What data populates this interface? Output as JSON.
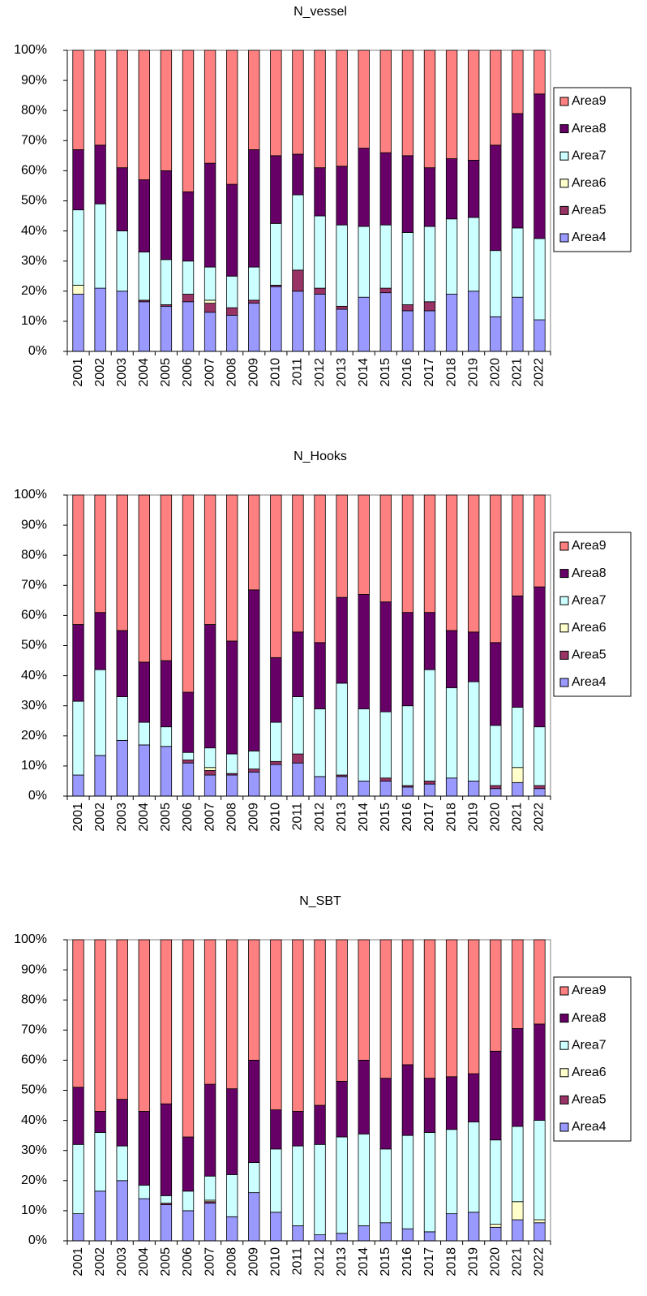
{
  "chart_data": [
    {
      "type": "stacked_bar_100",
      "title": "N_vessel",
      "categories": [
        "2001",
        "2002",
        "2003",
        "2004",
        "2005",
        "2006",
        "2007",
        "2008",
        "2009",
        "2010",
        "2011",
        "2012",
        "2013",
        "2014",
        "2015",
        "2016",
        "2017",
        "2018",
        "2019",
        "2020",
        "2021",
        "2022"
      ],
      "series": [
        {
          "name": "Area4",
          "color": "#9999ff",
          "values": [
            19,
            21,
            20,
            16.5,
            15,
            16.5,
            13,
            12,
            16,
            21.5,
            20,
            19,
            14,
            18,
            19.5,
            13.5,
            13.5,
            19,
            20,
            11.5,
            18,
            10.5
          ]
        },
        {
          "name": "Area5",
          "color": "#993366",
          "values": [
            0,
            0,
            0,
            0.5,
            0.5,
            2.5,
            3,
            2.5,
            1,
            0.5,
            7,
            2,
            1,
            0,
            1.5,
            2,
            3,
            0,
            0,
            0,
            0,
            0
          ]
        },
        {
          "name": "Area6",
          "color": "#ffffcc",
          "values": [
            3,
            0,
            0,
            0,
            0,
            0,
            1,
            0,
            0,
            0,
            0,
            0,
            0,
            0,
            0,
            0,
            0,
            0,
            0,
            0,
            0,
            0
          ]
        },
        {
          "name": "Area7",
          "color": "#ccffff",
          "values": [
            25,
            28,
            20,
            16,
            15,
            11,
            11,
            10.5,
            11,
            20.5,
            25,
            24,
            27,
            23.5,
            21,
            24,
            25,
            25,
            24.5,
            22,
            23,
            27
          ]
        },
        {
          "name": "Area8",
          "color": "#660066",
          "values": [
            20,
            19.5,
            21,
            24,
            29.5,
            23,
            34.5,
            30.5,
            39,
            22.5,
            13.5,
            16,
            19.5,
            26,
            24,
            25.5,
            19.5,
            20,
            19,
            35,
            38,
            48
          ]
        },
        {
          "name": "Area9",
          "color": "#ff8080",
          "values": [
            33,
            31.5,
            39,
            43,
            40,
            47,
            37.5,
            44.5,
            33,
            35,
            34.5,
            39,
            38.5,
            32.5,
            34,
            35,
            39,
            36,
            36.5,
            31.5,
            21,
            14.5
          ]
        }
      ],
      "ylim": [
        0,
        100
      ],
      "yticks": [
        {
          "value": 0,
          "label": "0%"
        },
        {
          "value": 10,
          "label": "10%"
        },
        {
          "value": 20,
          "label": "20%"
        },
        {
          "value": 30,
          "label": "30%"
        },
        {
          "value": 40,
          "label": "40%"
        },
        {
          "value": 50,
          "label": "50%"
        },
        {
          "value": 60,
          "label": "60%"
        },
        {
          "value": 70,
          "label": "70%"
        },
        {
          "value": 80,
          "label": "80%"
        },
        {
          "value": 90,
          "label": "90%"
        },
        {
          "value": 100,
          "label": "100%"
        }
      ],
      "grid": false,
      "legend": "right"
    },
    {
      "type": "stacked_bar_100",
      "title": "N_Hooks",
      "categories": [
        "2001",
        "2002",
        "2003",
        "2004",
        "2005",
        "2006",
        "2007",
        "2008",
        "2009",
        "2010",
        "2011",
        "2012",
        "2013",
        "2014",
        "2015",
        "2016",
        "2017",
        "2018",
        "2019",
        "2020",
        "2021",
        "2022"
      ],
      "series": [
        {
          "name": "Area4",
          "color": "#9999ff",
          "values": [
            7,
            13.5,
            18.5,
            17,
            16.5,
            11,
            7,
            7,
            8,
            10.5,
            11,
            6.5,
            6.5,
            5,
            5,
            3,
            4,
            6,
            5,
            2.5,
            4.5,
            2.5
          ]
        },
        {
          "name": "Area5",
          "color": "#993366",
          "values": [
            0,
            0,
            0,
            0,
            0,
            1,
            1.5,
            0.5,
            1,
            1,
            3,
            0,
            0.5,
            0,
            1,
            0.5,
            1,
            0,
            0,
            1,
            0,
            1
          ]
        },
        {
          "name": "Area6",
          "color": "#ffffcc",
          "values": [
            0,
            0,
            0,
            0,
            0,
            0,
            1,
            0,
            0,
            0,
            0,
            0,
            0,
            0,
            0,
            0,
            0,
            0,
            0,
            0,
            5,
            0
          ]
        },
        {
          "name": "Area7",
          "color": "#ccffff",
          "values": [
            24.5,
            28.5,
            14.5,
            7.5,
            6.5,
            2.5,
            6.5,
            6.5,
            6,
            13,
            19,
            22.5,
            30.5,
            24,
            22,
            26.5,
            37,
            30,
            33,
            20,
            20,
            19.5
          ]
        },
        {
          "name": "Area8",
          "color": "#660066",
          "values": [
            25.5,
            19,
            22,
            20,
            22,
            20,
            41,
            37.5,
            53.5,
            21.5,
            21.5,
            22,
            28.5,
            38,
            36.5,
            31,
            19,
            19,
            16.5,
            27.5,
            37,
            46.5
          ]
        },
        {
          "name": "Area9",
          "color": "#ff8080",
          "values": [
            43,
            39,
            45,
            55.5,
            55,
            65.5,
            43,
            48.5,
            31.5,
            54,
            45.5,
            49,
            34,
            33,
            35.5,
            39,
            39,
            45,
            45.5,
            49,
            33.5,
            30.5
          ]
        }
      ],
      "ylim": [
        0,
        100
      ],
      "yticks": [
        {
          "value": 0,
          "label": "0%"
        },
        {
          "value": 10,
          "label": "10%"
        },
        {
          "value": 20,
          "label": "20%"
        },
        {
          "value": 30,
          "label": "30%"
        },
        {
          "value": 40,
          "label": "40%"
        },
        {
          "value": 50,
          "label": "50%"
        },
        {
          "value": 60,
          "label": "60%"
        },
        {
          "value": 70,
          "label": "70%"
        },
        {
          "value": 80,
          "label": "80%"
        },
        {
          "value": 90,
          "label": "90%"
        },
        {
          "value": 100,
          "label": "100%"
        }
      ],
      "grid": false,
      "legend": "right"
    },
    {
      "type": "stacked_bar_100",
      "title": "N_SBT",
      "categories": [
        "2001",
        "2002",
        "2003",
        "2004",
        "2005",
        "2006",
        "2007",
        "2008",
        "2009",
        "2010",
        "2011",
        "2012",
        "2013",
        "2014",
        "2015",
        "2016",
        "2017",
        "2018",
        "2019",
        "2020",
        "2021",
        "2022"
      ],
      "series": [
        {
          "name": "Area4",
          "color": "#9999ff",
          "values": [
            9,
            16.5,
            20,
            14,
            12,
            10,
            12.5,
            8,
            16,
            9.5,
            5,
            2,
            2.5,
            5,
            6,
            4,
            3,
            9,
            9.5,
            4.5,
            7,
            6
          ]
        },
        {
          "name": "Area5",
          "color": "#993366",
          "values": [
            0,
            0,
            0,
            0,
            0.5,
            0,
            0.5,
            0,
            0,
            0,
            0,
            0,
            0,
            0,
            0,
            0,
            0,
            0,
            0,
            0,
            0,
            0
          ]
        },
        {
          "name": "Area6",
          "color": "#ffffcc",
          "values": [
            0,
            0,
            0,
            0,
            0,
            0,
            0.5,
            0,
            0,
            0,
            0,
            0,
            0,
            0,
            0,
            0,
            0,
            0,
            0,
            1,
            6,
            1
          ]
        },
        {
          "name": "Area7",
          "color": "#ccffff",
          "values": [
            23,
            19.5,
            11.5,
            4.5,
            2.5,
            6.5,
            8,
            14,
            10,
            21,
            26.5,
            30,
            32,
            30.5,
            24.5,
            31,
            33,
            28,
            30,
            28,
            25,
            33
          ]
        },
        {
          "name": "Area8",
          "color": "#660066",
          "values": [
            19,
            7,
            15.5,
            24.5,
            30.5,
            18,
            30.5,
            28.5,
            34,
            13,
            11.5,
            13,
            18.5,
            24.5,
            23.5,
            23.5,
            18,
            17.5,
            16,
            29.5,
            32.5,
            32
          ]
        },
        {
          "name": "Area9",
          "color": "#ff8080",
          "values": [
            49,
            57,
            53,
            57,
            54.5,
            65.5,
            48,
            49.5,
            40,
            56.5,
            57,
            55,
            47,
            40,
            46,
            41.5,
            46,
            45.5,
            44.5,
            37,
            29.5,
            28
          ]
        }
      ],
      "ylim": [
        0,
        100
      ],
      "yticks": [
        {
          "value": 0,
          "label": "0%"
        },
        {
          "value": 10,
          "label": "10%"
        },
        {
          "value": 20,
          "label": "20%"
        },
        {
          "value": 30,
          "label": "30%"
        },
        {
          "value": 40,
          "label": "40%"
        },
        {
          "value": 50,
          "label": "50%"
        },
        {
          "value": 60,
          "label": "60%"
        },
        {
          "value": 70,
          "label": "70%"
        },
        {
          "value": 80,
          "label": "80%"
        },
        {
          "value": 90,
          "label": "90%"
        },
        {
          "value": 100,
          "label": "100%"
        }
      ],
      "grid": false,
      "legend": "right"
    }
  ]
}
